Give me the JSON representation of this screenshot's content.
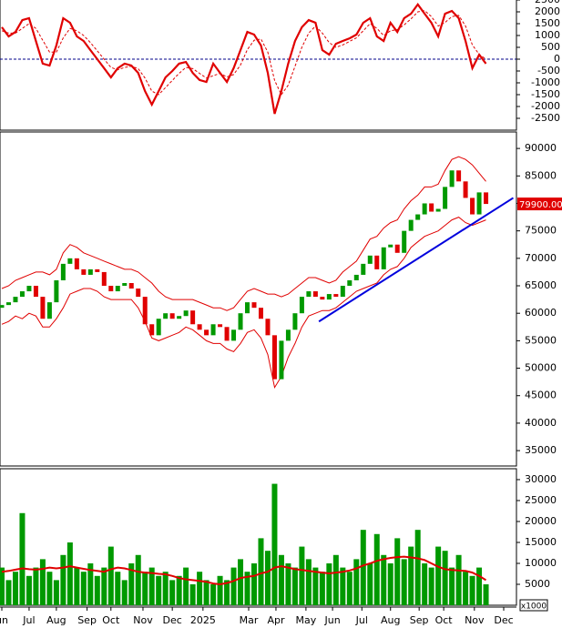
{
  "chart_data": [
    {
      "type": "line",
      "ylim": [
        -3000,
        2500
      ],
      "yticks": [
        2500,
        2000,
        1500,
        1000,
        500,
        0,
        -500,
        -1000,
        -1500,
        -2000,
        -2500
      ],
      "series": [
        {
          "color": "#e00000",
          "style": "solid",
          "values": [
            1350,
            960,
            1150,
            1650,
            1730,
            770,
            -190,
            -270,
            580,
            1730,
            1540,
            960,
            770,
            380,
            0,
            -380,
            -770,
            -380,
            -190,
            -270,
            -580,
            -1350,
            -1920,
            -1350,
            -770,
            -500,
            -190,
            -120,
            -580,
            -880,
            -960,
            -190,
            -580,
            -960,
            -380,
            380,
            1150,
            1040,
            580,
            -580,
            -2310,
            -1350,
            -190,
            770,
            1350,
            1650,
            1540,
            380,
            190,
            650,
            770,
            880,
            1040,
            1540,
            1730,
            960,
            770,
            1540,
            1150,
            1730,
            1920,
            2310,
            1920,
            1540,
            960,
            1920,
            2040,
            1730,
            770,
            -380,
            190,
            -190
          ]
        },
        {
          "color": "#e00000",
          "style": "dashed",
          "values": [
            1200,
            1100,
            1100,
            1300,
            1500,
            1300,
            800,
            300,
            300,
            900,
            1300,
            1200,
            1000,
            700,
            350,
            0,
            -350,
            -450,
            -350,
            -300,
            -400,
            -800,
            -1350,
            -1500,
            -1200,
            -900,
            -600,
            -350,
            -400,
            -600,
            -800,
            -700,
            -600,
            -750,
            -650,
            -250,
            400,
            800,
            850,
            300,
            -900,
            -1500,
            -1100,
            -300,
            500,
            1100,
            1400,
            1100,
            700,
            500,
            600,
            750,
            900,
            1200,
            1500,
            1300,
            1000,
            1200,
            1250,
            1450,
            1700,
            2000,
            2050,
            1800,
            1400,
            1550,
            1800,
            1850,
            1400,
            600,
            200,
            0
          ]
        }
      ]
    },
    {
      "type": "candlestick",
      "ylim": [
        32200,
        93000
      ],
      "yticks": [
        90000,
        85000,
        80000,
        75000,
        70000,
        65000,
        60000,
        55000,
        50000,
        45000,
        40000,
        35000
      ],
      "up_color": "#009900",
      "down_color": "#e00000",
      "band_color": "#e00000",
      "open": [
        61000,
        61500,
        62000,
        63000,
        64000,
        65000,
        63000,
        59000,
        62000,
        66000,
        69000,
        70000,
        68000,
        67000,
        68000,
        67500,
        65000,
        64000,
        65000,
        65500,
        64500,
        63000,
        58000,
        56000,
        59000,
        60000,
        59000,
        59500,
        60500,
        58000,
        57000,
        56000,
        58000,
        57500,
        55000,
        57000,
        60000,
        62000,
        61000,
        59000,
        56000,
        48000,
        55000,
        57000,
        60000,
        63000,
        64000,
        63000,
        62500,
        63500,
        63000,
        65000,
        66000,
        67000,
        69000,
        70500,
        68000,
        72000,
        72500,
        71000,
        75000,
        77000,
        78000,
        80000,
        78500,
        79000,
        83000,
        86000,
        84000,
        81000,
        78000,
        82000
      ],
      "close": [
        61500,
        62000,
        63000,
        64000,
        65000,
        63000,
        59000,
        62000,
        66000,
        69000,
        70000,
        68000,
        67000,
        68000,
        67500,
        65000,
        64000,
        65000,
        65500,
        64500,
        63000,
        58000,
        56000,
        59000,
        60000,
        59000,
        59500,
        60500,
        58000,
        57000,
        56000,
        58000,
        57500,
        55000,
        57000,
        60000,
        62000,
        61000,
        59000,
        56000,
        48000,
        55000,
        57000,
        60000,
        63000,
        64000,
        63000,
        62500,
        63500,
        63000,
        65000,
        66000,
        67000,
        69000,
        70500,
        68000,
        72000,
        72500,
        71000,
        75000,
        77000,
        78000,
        80000,
        78500,
        79000,
        83000,
        86000,
        84000,
        81000,
        78000,
        82000,
        79900
      ],
      "upper": [
        64500,
        65000,
        66000,
        66500,
        67000,
        67500,
        67500,
        67000,
        68000,
        71000,
        72500,
        72000,
        71000,
        70500,
        70000,
        69500,
        69000,
        68500,
        68000,
        68000,
        67500,
        66500,
        65500,
        64000,
        63000,
        62500,
        62500,
        62500,
        62500,
        62000,
        61500,
        61000,
        61000,
        60500,
        61000,
        62500,
        64000,
        64500,
        64000,
        63500,
        63500,
        63000,
        63500,
        64500,
        65500,
        66500,
        66500,
        66000,
        65500,
        66000,
        67500,
        68500,
        69500,
        71500,
        73500,
        74000,
        75500,
        76500,
        77000,
        79000,
        80500,
        81500,
        83000,
        83000,
        83500,
        86000,
        88000,
        88500,
        88000,
        87000,
        85500,
        84000
      ],
      "lower": [
        58000,
        58500,
        59500,
        59000,
        60000,
        59500,
        57500,
        57500,
        59000,
        61000,
        63500,
        64000,
        64500,
        64500,
        64000,
        63000,
        62500,
        62500,
        62500,
        62500,
        61000,
        58500,
        55500,
        55000,
        55500,
        56000,
        56500,
        57500,
        57000,
        56000,
        55000,
        54500,
        54500,
        53500,
        53000,
        54500,
        56500,
        57000,
        55500,
        52500,
        46500,
        48500,
        52000,
        54500,
        57500,
        59500,
        60000,
        60500,
        60500,
        61000,
        62000,
        63000,
        64000,
        64500,
        65000,
        65500,
        67000,
        68000,
        68500,
        70000,
        72000,
        73000,
        74000,
        74500,
        75000,
        76000,
        77000,
        77500,
        76500,
        76000,
        76500,
        77000
      ],
      "trendline": {
        "color": "#0000dd",
        "x": [
          46.5,
          75
        ],
        "y": [
          58500,
          81000
        ]
      },
      "last_price": {
        "value": 79900,
        "label": "79900.00"
      }
    },
    {
      "type": "bar",
      "ylim": [
        0,
        32600
      ],
      "yticks": [
        30000,
        25000,
        20000,
        15000,
        10000,
        5000
      ],
      "y_unit_label": "x1000",
      "color": "#009900",
      "ma_color": "#e00000",
      "values": [
        9000,
        6000,
        8000,
        22000,
        7000,
        9000,
        11000,
        8000,
        6000,
        12000,
        15000,
        9000,
        8000,
        10000,
        7000,
        9000,
        14000,
        8000,
        6000,
        10000,
        12000,
        8000,
        9000,
        7000,
        8000,
        6000,
        7000,
        9000,
        5000,
        8000,
        6000,
        5000,
        7000,
        6000,
        9000,
        11000,
        8000,
        10000,
        16000,
        13000,
        29000,
        12000,
        10000,
        9000,
        14000,
        11000,
        9000,
        8000,
        10000,
        12000,
        9000,
        8000,
        11000,
        18000,
        10000,
        17000,
        12000,
        10000,
        16000,
        11000,
        14000,
        18000,
        10000,
        9000,
        14000,
        13000,
        9000,
        12000,
        8000,
        7000,
        9000,
        5000
      ],
      "ma": [
        8000,
        8200,
        8500,
        8800,
        8600,
        8500,
        8700,
        9000,
        8800,
        9000,
        9300,
        9000,
        8700,
        8400,
        8200,
        8000,
        8600,
        9000,
        8800,
        8400,
        8000,
        7800,
        7700,
        7500,
        7400,
        7000,
        6500,
        6200,
        6000,
        5800,
        5600,
        5200,
        5000,
        5300,
        5800,
        6500,
        6800,
        7000,
        7600,
        8000,
        9000,
        9300,
        9000,
        8600,
        8400,
        8200,
        8000,
        7800,
        7600,
        7800,
        8000,
        8300,
        8800,
        9500,
        10000,
        10600,
        11000,
        11300,
        11500,
        11600,
        11400,
        11200,
        10800,
        10000,
        9200,
        8600,
        8400,
        8300,
        8200,
        7800,
        7000,
        6000
      ],
      "xlim": [
        0,
        74
      ],
      "xticks": [
        {
          "value": 0,
          "label": "un"
        },
        {
          "value": 4,
          "label": "Jul"
        },
        {
          "value": 8,
          "label": "Aug"
        },
        {
          "value": 12.5,
          "label": "Sep"
        },
        {
          "value": 16,
          "label": "Oct"
        },
        {
          "value": 20.7,
          "label": "Nov"
        },
        {
          "value": 25,
          "label": "Dec"
        },
        {
          "value": 29.5,
          "label": "2025"
        },
        {
          "value": 36.2,
          "label": "Mar"
        },
        {
          "value": 40.2,
          "label": "Apr"
        },
        {
          "value": 44.6,
          "label": "May"
        },
        {
          "value": 48.5,
          "label": "Jun"
        },
        {
          "value": 52.8,
          "label": "Jul"
        },
        {
          "value": 57,
          "label": "Aug"
        },
        {
          "value": 61.2,
          "label": "Sep"
        },
        {
          "value": 64.8,
          "label": "Oct"
        },
        {
          "value": 69.3,
          "label": "Nov"
        },
        {
          "value": 73.6,
          "label": "Dec"
        }
      ]
    }
  ]
}
